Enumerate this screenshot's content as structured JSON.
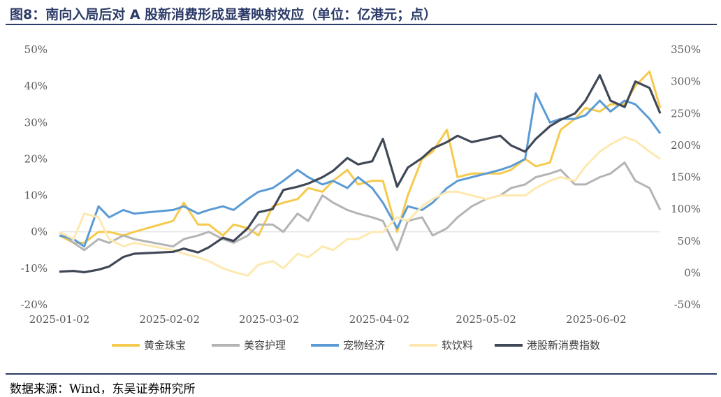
{
  "title": "图8：南向入局后对 A 股新消费形成显著映射效应（单位：亿港元；点）",
  "source": "数据来源：Wind，东吴证券研究所",
  "chart_data": {
    "type": "line",
    "x_ticks": [
      "2025-01-02",
      "2025-02-02",
      "2025-03-02",
      "2025-04-02",
      "2025-05-02",
      "2025-06-02"
    ],
    "x_range": [
      "2025-01-02",
      "2025-06-20"
    ],
    "y_left": {
      "ticks": [
        "-20%",
        "-10%",
        "0%",
        "10%",
        "20%",
        "30%",
        "40%",
        "50%"
      ],
      "range": [
        -20,
        50
      ]
    },
    "y_right": {
      "ticks": [
        "-50%",
        "0%",
        "50%",
        "100%",
        "150%",
        "200%",
        "250%",
        "300%",
        "350%"
      ],
      "range": [
        -50,
        350
      ]
    },
    "grid": false,
    "legend_position": "bottom",
    "series": [
      {
        "name": "黄金珠宝",
        "color": "#f6ca4c",
        "axis": "left",
        "x": [
          "2025-01-02",
          "2025-01-06",
          "2025-01-09",
          "2025-01-13",
          "2025-01-16",
          "2025-01-20",
          "2025-01-23",
          "2025-02-03",
          "2025-02-06",
          "2025-02-10",
          "2025-02-13",
          "2025-02-17",
          "2025-02-20",
          "2025-02-24",
          "2025-02-27",
          "2025-03-03",
          "2025-03-06",
          "2025-03-10",
          "2025-03-13",
          "2025-03-17",
          "2025-03-20",
          "2025-03-24",
          "2025-03-27",
          "2025-03-31",
          "2025-04-03",
          "2025-04-07",
          "2025-04-10",
          "2025-04-14",
          "2025-04-17",
          "2025-04-21",
          "2025-04-24",
          "2025-04-28",
          "2025-05-02",
          "2025-05-06",
          "2025-05-09",
          "2025-05-13",
          "2025-05-16",
          "2025-05-20",
          "2025-05-23",
          "2025-05-27",
          "2025-05-30",
          "2025-06-03",
          "2025-06-06",
          "2025-06-10",
          "2025-06-13",
          "2025-06-17",
          "2025-06-20"
        ],
        "values": [
          -1,
          -3,
          -3,
          0,
          0,
          -1,
          0,
          3,
          8,
          2,
          2,
          -1,
          2,
          1,
          -1,
          7,
          8,
          9,
          12,
          11,
          14,
          17,
          13,
          14,
          14,
          0,
          10,
          20,
          22,
          28,
          15,
          16,
          16,
          16,
          17,
          20,
          18,
          19,
          28,
          31,
          34,
          33,
          35,
          35,
          40,
          44,
          34
        ]
      },
      {
        "name": "美容护理",
        "color": "#b4b4b4",
        "axis": "left",
        "x": [
          "2025-01-02",
          "2025-01-06",
          "2025-01-09",
          "2025-01-13",
          "2025-01-16",
          "2025-01-20",
          "2025-01-23",
          "2025-02-03",
          "2025-02-06",
          "2025-02-10",
          "2025-02-13",
          "2025-02-17",
          "2025-02-20",
          "2025-02-24",
          "2025-02-27",
          "2025-03-03",
          "2025-03-06",
          "2025-03-10",
          "2025-03-13",
          "2025-03-17",
          "2025-03-20",
          "2025-03-24",
          "2025-03-27",
          "2025-03-31",
          "2025-04-03",
          "2025-04-07",
          "2025-04-10",
          "2025-04-14",
          "2025-04-17",
          "2025-04-21",
          "2025-04-24",
          "2025-04-28",
          "2025-05-02",
          "2025-05-06",
          "2025-05-09",
          "2025-05-13",
          "2025-05-16",
          "2025-05-20",
          "2025-05-23",
          "2025-05-27",
          "2025-05-30",
          "2025-06-03",
          "2025-06-06",
          "2025-06-10",
          "2025-06-13",
          "2025-06-17",
          "2025-06-20"
        ],
        "values": [
          0,
          -3,
          -5,
          -2,
          -3,
          -1,
          -2,
          -4,
          -2,
          -1,
          0,
          -2,
          -3,
          -1,
          2,
          2,
          0,
          5,
          3,
          10,
          8,
          6,
          5,
          4,
          3,
          -5,
          3,
          4,
          -1,
          1,
          4,
          7,
          9,
          10,
          12,
          13,
          15,
          16,
          17,
          13,
          13,
          15,
          16,
          19,
          14,
          12,
          6
        ]
      },
      {
        "name": "宠物经济",
        "color": "#5b9bd5",
        "axis": "left",
        "x": [
          "2025-01-02",
          "2025-01-06",
          "2025-01-09",
          "2025-01-13",
          "2025-01-16",
          "2025-01-20",
          "2025-01-23",
          "2025-02-03",
          "2025-02-06",
          "2025-02-10",
          "2025-02-13",
          "2025-02-17",
          "2025-02-20",
          "2025-02-24",
          "2025-02-27",
          "2025-03-03",
          "2025-03-06",
          "2025-03-10",
          "2025-03-13",
          "2025-03-17",
          "2025-03-20",
          "2025-03-24",
          "2025-03-27",
          "2025-03-31",
          "2025-04-03",
          "2025-04-07",
          "2025-04-10",
          "2025-04-14",
          "2025-04-17",
          "2025-04-21",
          "2025-04-24",
          "2025-04-28",
          "2025-05-02",
          "2025-05-06",
          "2025-05-09",
          "2025-05-13",
          "2025-05-16",
          "2025-05-20",
          "2025-05-23",
          "2025-05-27",
          "2025-05-30",
          "2025-06-03",
          "2025-06-06",
          "2025-06-10",
          "2025-06-13",
          "2025-06-17",
          "2025-06-20"
        ],
        "values": [
          -1,
          -2,
          -4,
          7,
          4,
          6,
          5,
          6,
          7,
          5,
          6,
          7,
          6,
          9,
          11,
          12,
          14,
          17,
          15,
          13,
          14,
          12,
          15,
          12,
          8,
          1,
          7,
          6,
          8,
          12,
          14,
          15,
          16,
          17,
          18,
          20,
          38,
          30,
          31,
          31,
          32,
          36,
          33,
          36,
          35,
          31,
          27
        ]
      },
      {
        "name": "软饮料",
        "color": "#fde9b0",
        "axis": "left",
        "x": [
          "2025-01-02",
          "2025-01-06",
          "2025-01-09",
          "2025-01-13",
          "2025-01-16",
          "2025-01-20",
          "2025-01-23",
          "2025-02-03",
          "2025-02-06",
          "2025-02-10",
          "2025-02-13",
          "2025-02-17",
          "2025-02-20",
          "2025-02-24",
          "2025-02-27",
          "2025-03-03",
          "2025-03-06",
          "2025-03-10",
          "2025-03-13",
          "2025-03-17",
          "2025-03-20",
          "2025-03-24",
          "2025-03-27",
          "2025-03-31",
          "2025-04-03",
          "2025-04-07",
          "2025-04-10",
          "2025-04-14",
          "2025-04-17",
          "2025-04-21",
          "2025-04-24",
          "2025-04-28",
          "2025-05-02",
          "2025-05-06",
          "2025-05-09",
          "2025-05-13",
          "2025-05-16",
          "2025-05-20",
          "2025-05-23",
          "2025-05-27",
          "2025-05-30",
          "2025-06-03",
          "2025-06-06",
          "2025-06-10",
          "2025-06-13",
          "2025-06-17",
          "2025-06-20"
        ],
        "values": [
          0,
          -2,
          5,
          4,
          -2,
          -4,
          -3,
          -5,
          -6,
          -7,
          -8,
          -10,
          -11,
          -12,
          -9,
          -8,
          -10,
          -6,
          -7,
          -4,
          -5,
          -2,
          -2,
          0,
          0,
          4,
          3,
          7,
          9,
          11,
          11,
          10,
          9,
          10,
          10,
          10,
          12,
          14,
          15,
          14,
          18,
          22,
          24,
          26,
          25,
          22,
          20
        ]
      },
      {
        "name": "港股新消费指数",
        "color": "#404858",
        "axis": "right",
        "x": [
          "2025-01-02",
          "2025-01-06",
          "2025-01-09",
          "2025-01-13",
          "2025-01-16",
          "2025-01-20",
          "2025-01-23",
          "2025-02-03",
          "2025-02-06",
          "2025-02-10",
          "2025-02-13",
          "2025-02-17",
          "2025-02-20",
          "2025-02-24",
          "2025-02-27",
          "2025-03-03",
          "2025-03-06",
          "2025-03-10",
          "2025-03-13",
          "2025-03-17",
          "2025-03-20",
          "2025-03-24",
          "2025-03-27",
          "2025-03-31",
          "2025-04-03",
          "2025-04-07",
          "2025-04-10",
          "2025-04-14",
          "2025-04-17",
          "2025-04-21",
          "2025-04-24",
          "2025-04-28",
          "2025-05-02",
          "2025-05-06",
          "2025-05-09",
          "2025-05-13",
          "2025-05-16",
          "2025-05-20",
          "2025-05-23",
          "2025-05-27",
          "2025-05-30",
          "2025-06-03",
          "2025-06-06",
          "2025-06-10",
          "2025-06-13",
          "2025-06-17",
          "2025-06-20"
        ],
        "values": [
          2,
          3,
          1,
          5,
          10,
          25,
          30,
          33,
          38,
          32,
          40,
          55,
          50,
          70,
          95,
          100,
          130,
          135,
          140,
          150,
          160,
          180,
          170,
          175,
          210,
          135,
          165,
          180,
          195,
          205,
          215,
          205,
          210,
          215,
          200,
          190,
          210,
          230,
          240,
          250,
          270,
          310,
          270,
          260,
          300,
          290,
          250
        ]
      }
    ]
  }
}
